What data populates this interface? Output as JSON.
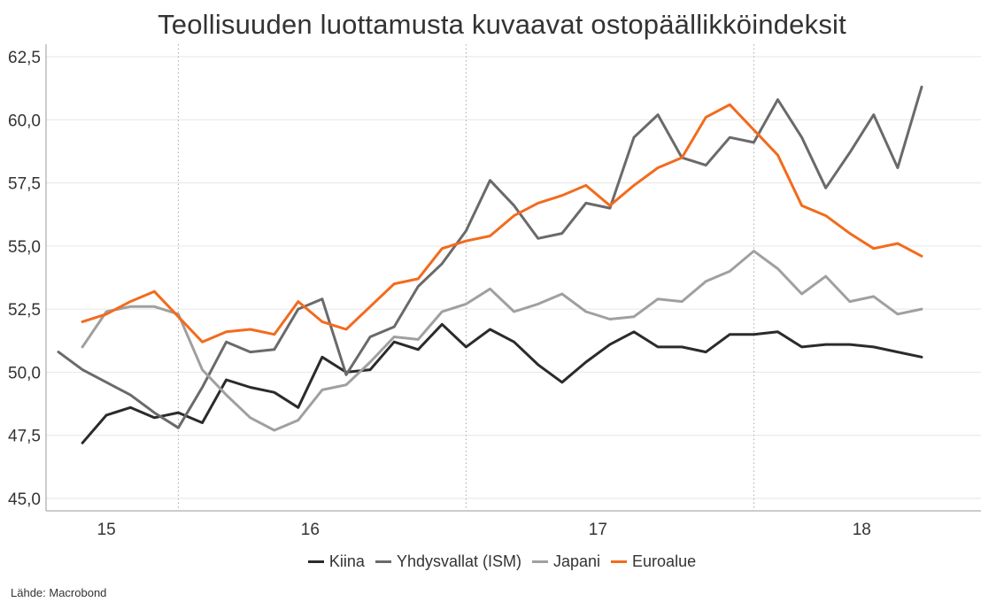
{
  "chart_data": {
    "type": "line",
    "title": "Teollisuuden luottamusta kuvaavat ostopäällikköindeksit",
    "source": "Lähde: Macrobond",
    "ylim": [
      45.0,
      62.5
    ],
    "yticks": [
      "45,0",
      "47,5",
      "50,0",
      "52,5",
      "55,0",
      "57,5",
      "60,0",
      "62,5"
    ],
    "ytick_values": [
      45.0,
      47.5,
      50.0,
      52.5,
      55.0,
      57.5,
      60.0,
      62.5
    ],
    "xlim": [
      0,
      38
    ],
    "xtick_labels": [
      "15",
      "16",
      "17",
      "18"
    ],
    "xtick_positions": [
      2,
      10.5,
      22.5,
      33.5
    ],
    "year_dividers": [
      5,
      17,
      29
    ],
    "grid": true,
    "legend_position": "bottom",
    "series": [
      {
        "name": "Kiina",
        "color": "#2b2b2b",
        "x": [
          1,
          2,
          3,
          4,
          5,
          6,
          7,
          8,
          9,
          10,
          11,
          12,
          13,
          14,
          15,
          16,
          17,
          18,
          19,
          20,
          21,
          22,
          23,
          24,
          25,
          26,
          27,
          28,
          29,
          30,
          31,
          32,
          33,
          34,
          35,
          36
        ],
        "values": [
          47.2,
          48.3,
          48.6,
          48.2,
          48.4,
          48.0,
          49.7,
          49.4,
          49.2,
          48.6,
          50.6,
          50.0,
          50.1,
          51.2,
          50.9,
          51.9,
          51.0,
          51.7,
          51.2,
          50.3,
          49.6,
          50.4,
          51.1,
          51.6,
          51.0,
          51.0,
          50.8,
          51.5,
          51.5,
          51.6,
          51.0,
          51.1,
          51.1,
          51.0,
          50.8,
          50.6
        ]
      },
      {
        "name": "Yhdysvallat (ISM)",
        "color": "#6a6a6a",
        "x": [
          0,
          1,
          2,
          3,
          4,
          5,
          6,
          7,
          8,
          9,
          10,
          11,
          12,
          13,
          14,
          15,
          16,
          17,
          18,
          19,
          20,
          21,
          22,
          23,
          24,
          25,
          26,
          27,
          28,
          29,
          30,
          31,
          32,
          33,
          34,
          35,
          36
        ],
        "values": [
          50.8,
          50.1,
          49.6,
          49.1,
          48.4,
          47.8,
          49.4,
          51.2,
          50.8,
          50.9,
          52.5,
          52.9,
          49.9,
          51.4,
          51.8,
          53.4,
          54.3,
          55.6,
          57.6,
          56.6,
          55.3,
          55.5,
          56.7,
          56.5,
          59.3,
          60.2,
          58.5,
          58.2,
          59.3,
          59.1,
          60.8,
          59.3,
          57.3,
          58.7,
          60.2,
          58.1,
          61.3
        ]
      },
      {
        "name": "Japani",
        "color": "#a0a0a0",
        "x": [
          1,
          2,
          3,
          4,
          5,
          6,
          7,
          8,
          9,
          10,
          11,
          12,
          13,
          14,
          15,
          16,
          17,
          18,
          19,
          20,
          21,
          22,
          23,
          24,
          25,
          26,
          27,
          28,
          29,
          30,
          31,
          32,
          33,
          34,
          35,
          36
        ],
        "values": [
          51.0,
          52.4,
          52.6,
          52.6,
          52.3,
          50.1,
          49.1,
          48.2,
          47.7,
          48.1,
          49.3,
          49.5,
          50.4,
          51.4,
          51.3,
          52.4,
          52.7,
          53.3,
          52.4,
          52.7,
          53.1,
          52.4,
          52.1,
          52.2,
          52.9,
          52.8,
          53.6,
          54.0,
          54.8,
          54.1,
          53.1,
          53.8,
          52.8,
          53.0,
          52.3,
          52.5
        ]
      },
      {
        "name": "Euroalue",
        "color": "#f26b1d",
        "x": [
          1,
          2,
          3,
          4,
          5,
          6,
          7,
          8,
          9,
          10,
          11,
          12,
          13,
          14,
          15,
          16,
          17,
          18,
          19,
          20,
          21,
          22,
          23,
          24,
          25,
          26,
          27,
          28,
          29,
          30,
          31,
          32,
          33,
          34,
          35,
          36
        ],
        "values": [
          52.0,
          52.3,
          52.8,
          53.2,
          52.2,
          51.2,
          51.6,
          51.7,
          51.5,
          52.8,
          52.0,
          51.7,
          52.6,
          53.5,
          53.7,
          54.9,
          55.2,
          55.4,
          56.2,
          56.7,
          57.0,
          57.4,
          56.6,
          57.4,
          58.1,
          58.5,
          60.1,
          60.6,
          59.6,
          58.6,
          56.6,
          56.2,
          55.5,
          54.9,
          55.1,
          54.6
        ]
      }
    ]
  }
}
